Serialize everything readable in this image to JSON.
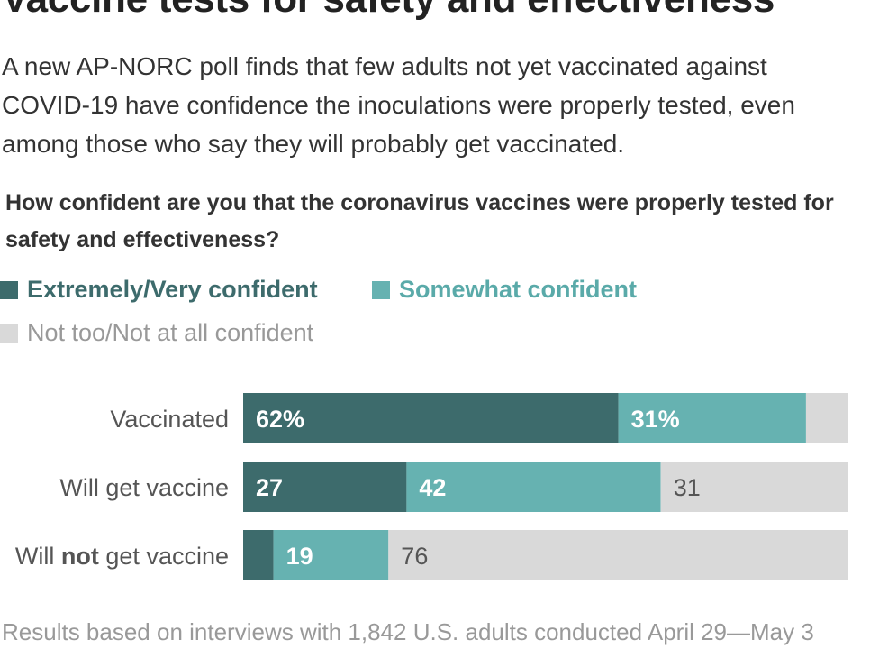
{
  "header": {
    "title": "Vaccine tests for safety and effectiveness",
    "subtitle": "A new AP-NORC poll finds that few adults not yet vaccinated against COVID-19 have confidence the inoculations were properly tested, even among those who say they will probably get vaccinated.",
    "question": "How confident are you that the coronavirus vaccines were properly tested for safety and effectiveness?"
  },
  "footnote": "Results based on interviews with 1,842 U.S. adults conducted April 29—May 3",
  "colors": {
    "extremely_very": "#3d6b6c",
    "somewhat": "#66b2b1",
    "not_too": "#d9d9d9",
    "label_on_dark": "#ffffff",
    "label_on_light": "#555555",
    "legend_text_dark": "#3d6b6c",
    "legend_text_mid": "#5aaaa9",
    "legend_text_light": "#999999"
  },
  "chart_data": {
    "type": "bar",
    "orientation": "horizontal",
    "stacked": true,
    "categories": [
      "Vaccinated",
      "Will get vaccine",
      "Will not get vaccine"
    ],
    "category_bold_words": [
      "",
      "",
      "not"
    ],
    "series": [
      {
        "name": "Extremely/Very confident",
        "values": [
          62,
          27,
          5
        ],
        "labels": [
          "62%",
          "27",
          ""
        ]
      },
      {
        "name": "Somewhat confident",
        "values": [
          31,
          42,
          19
        ],
        "labels": [
          "31%",
          "42",
          "19"
        ]
      },
      {
        "name": "Not too/Not at all confident",
        "values": [
          7,
          31,
          76
        ],
        "labels": [
          "",
          "31",
          "76"
        ]
      }
    ],
    "xlim": [
      0,
      100
    ],
    "legend_position": "top-left"
  }
}
